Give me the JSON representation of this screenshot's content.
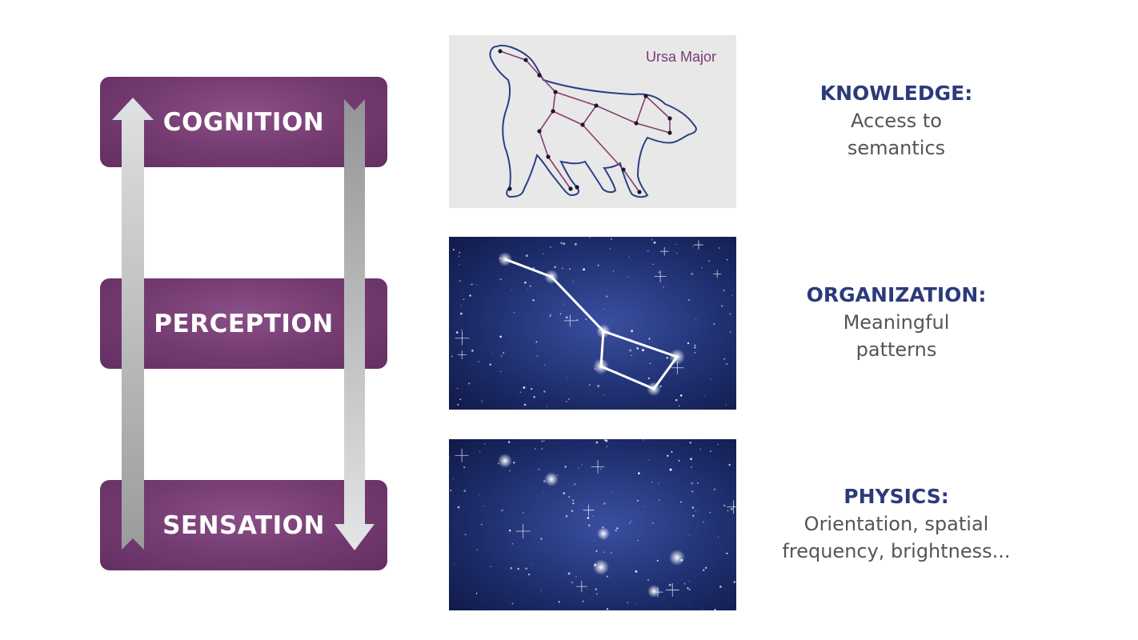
{
  "levels": [
    {
      "label": "COGNITION"
    },
    {
      "label": "PERCEPTION"
    },
    {
      "label": "SENSATION"
    }
  ],
  "panels": {
    "knowledge_caption": "Ursa Major"
  },
  "descriptions": [
    {
      "title": "KNOWLEDGE:",
      "lines": [
        "Access to",
        "semantics"
      ]
    },
    {
      "title": "ORGANIZATION:",
      "lines": [
        "Meaningful",
        "patterns"
      ]
    },
    {
      "title": "PHYSICS:",
      "lines": [
        "Orientation, spatial",
        "frequency, brightness..."
      ]
    }
  ],
  "colors": {
    "level_box": "#733a70",
    "title_blue": "#2c3a7c",
    "desc_gray": "#555555",
    "bear_outline": "#2b3f86",
    "constellation_line": "#8a3d6e",
    "night_sky": "#1c2b66",
    "arrow_gray": "#a8a9ab"
  },
  "icons": {
    "up_arrow": "bottom-up-processing-arrow",
    "down_arrow": "top-down-processing-arrow"
  }
}
